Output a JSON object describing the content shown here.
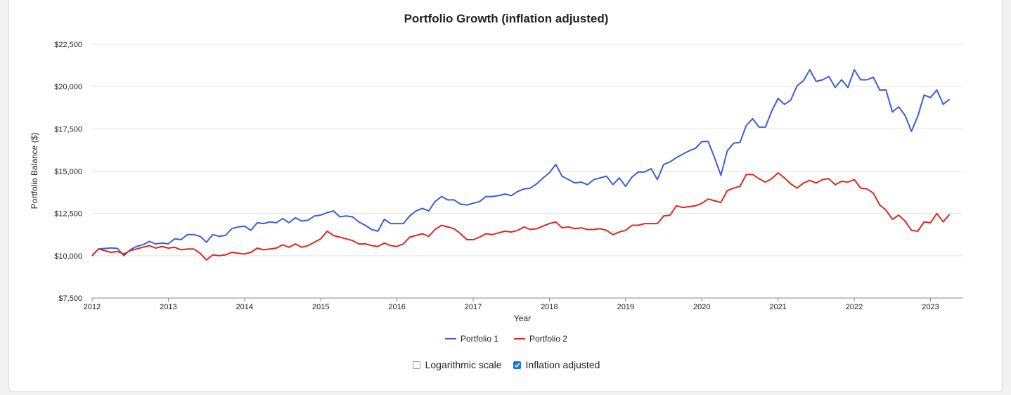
{
  "chart": {
    "title": "Portfolio Growth (inflation adjusted)",
    "xlabel": "Year",
    "ylabel": "Portfolio Balance ($)"
  },
  "legend": {
    "items": [
      {
        "label": "Portfolio 1",
        "color": "#3a5fd9"
      },
      {
        "label": "Portfolio 2",
        "color": "#e0281c"
      }
    ]
  },
  "controls": {
    "log_scale_label": "Logarithmic scale",
    "log_scale_checked": false,
    "inflation_label": "Inflation adjusted",
    "inflation_checked": true,
    "accent_color": "#1a73e8"
  },
  "chart_data": {
    "type": "line",
    "title": "Portfolio Growth (inflation adjusted)",
    "xlabel": "Year",
    "ylabel": "Portfolio Balance ($)",
    "xlim": [
      2012,
      2023.42
    ],
    "ylim": [
      7500,
      22500
    ],
    "x_ticks": [
      2012,
      2013,
      2014,
      2015,
      2016,
      2017,
      2018,
      2019,
      2020,
      2021,
      2022,
      2023
    ],
    "y_ticks": [
      7500,
      10000,
      12500,
      15000,
      17500,
      20000,
      22500
    ],
    "y_tick_labels": [
      "$7,500",
      "$10,000",
      "$12,500",
      "$15,000",
      "$17,500",
      "$20,000",
      "$22,500"
    ],
    "grid": true,
    "legend_position": "bottom",
    "x_start": 2012,
    "x_step_months": 1,
    "series": [
      {
        "name": "Portfolio 1",
        "color": "#3a5fd9",
        "values": [
          10000,
          10400,
          10430,
          10460,
          10430,
          10000,
          10350,
          10550,
          10650,
          10850,
          10700,
          10750,
          10700,
          11000,
          10950,
          11250,
          11250,
          11150,
          10800,
          11250,
          11150,
          11200,
          11600,
          11700,
          11750,
          11500,
          11950,
          11900,
          12000,
          11950,
          12200,
          11950,
          12250,
          12050,
          12100,
          12350,
          12400,
          12550,
          12650,
          12300,
          12350,
          12300,
          12000,
          11800,
          11550,
          11450,
          12150,
          11900,
          11900,
          11900,
          12350,
          12650,
          12800,
          12650,
          13200,
          13500,
          13300,
          13300,
          13050,
          13000,
          13100,
          13200,
          13500,
          13500,
          13550,
          13650,
          13550,
          13800,
          13950,
          14000,
          14250,
          14600,
          14900,
          15400,
          14700,
          14500,
          14300,
          14350,
          14200,
          14500,
          14600,
          14700,
          14200,
          14600,
          14100,
          14650,
          14950,
          14950,
          15150,
          14500,
          15400,
          15550,
          15800,
          16000,
          16200,
          16350,
          16750,
          16750,
          15800,
          14750,
          16200,
          16650,
          16700,
          17700,
          18100,
          17600,
          17600,
          18550,
          19300,
          18950,
          19200,
          20050,
          20350,
          21000,
          20300,
          20400,
          20600,
          19950,
          20400,
          19950,
          21000,
          20400,
          20400,
          20550,
          19800,
          19800,
          18500,
          18800,
          18300,
          17350,
          18250,
          19500,
          19350,
          19800,
          18950,
          19250
        ]
      },
      {
        "name": "Portfolio 2",
        "color": "#e0281c",
        "values": [
          10000,
          10400,
          10300,
          10200,
          10250,
          10100,
          10300,
          10400,
          10500,
          10600,
          10450,
          10550,
          10450,
          10500,
          10350,
          10400,
          10400,
          10150,
          9750,
          10050,
          10000,
          10050,
          10200,
          10150,
          10100,
          10200,
          10450,
          10350,
          10400,
          10450,
          10650,
          10500,
          10700,
          10500,
          10600,
          10800,
          11000,
          11450,
          11200,
          11100,
          11000,
          10900,
          10700,
          10700,
          10600,
          10550,
          10750,
          10600,
          10550,
          10700,
          11100,
          11200,
          11300,
          11150,
          11550,
          11800,
          11700,
          11600,
          11300,
          10950,
          10950,
          11100,
          11300,
          11250,
          11350,
          11450,
          11400,
          11500,
          11700,
          11550,
          11600,
          11750,
          11900,
          12000,
          11650,
          11700,
          11600,
          11650,
          11550,
          11550,
          11600,
          11500,
          11250,
          11400,
          11500,
          11800,
          11800,
          11900,
          11900,
          11900,
          12350,
          12400,
          12950,
          12850,
          12900,
          12950,
          13100,
          13350,
          13250,
          13150,
          13850,
          14000,
          14100,
          14800,
          14800,
          14550,
          14350,
          14550,
          14900,
          14600,
          14250,
          14000,
          14300,
          14450,
          14300,
          14500,
          14550,
          14200,
          14400,
          14350,
          14500,
          14000,
          13950,
          13700,
          13000,
          12700,
          12150,
          12400,
          12050,
          11500,
          11450,
          12000,
          11950,
          12500,
          12000,
          12450
        ]
      }
    ]
  }
}
